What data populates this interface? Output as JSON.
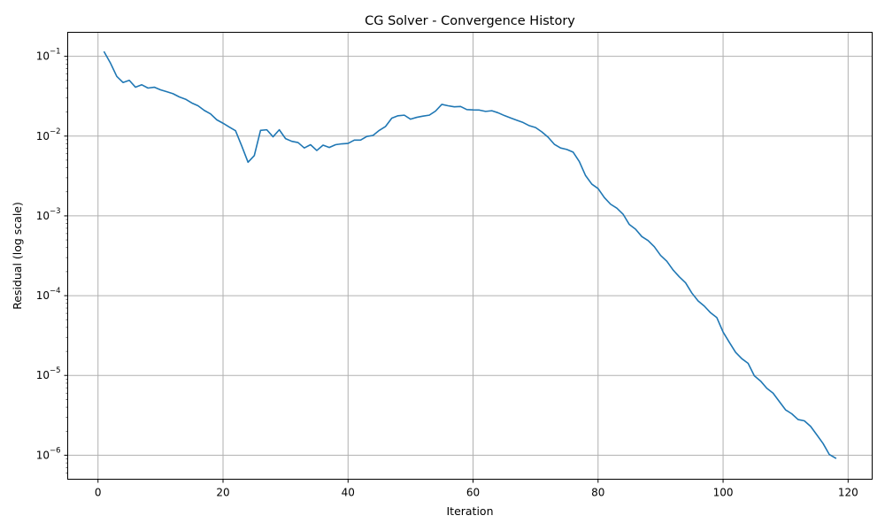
{
  "chart_data": {
    "type": "line",
    "title": "CG Solver - Convergence History",
    "xlabel": "Iteration",
    "ylabel": "Residual (log scale)",
    "xlim": [
      -4.85,
      123.85
    ],
    "ylim": [
      5e-07,
      0.2
    ],
    "yscale": "log",
    "grid": true,
    "x_ticks": [
      0,
      20,
      40,
      60,
      80,
      100,
      120
    ],
    "y_ticks": [
      {
        "base": "10",
        "exp": "−1",
        "value": 0.1
      },
      {
        "base": "10",
        "exp": "−2",
        "value": 0.01
      },
      {
        "base": "10",
        "exp": "−3",
        "value": 0.001
      },
      {
        "base": "10",
        "exp": "−4",
        "value": 0.0001
      },
      {
        "base": "10",
        "exp": "−5",
        "value": 1e-05
      },
      {
        "base": "10",
        "exp": "−6",
        "value": 1e-06
      }
    ],
    "series": [
      {
        "color": "#1f77b4",
        "points": [
          [
            1,
            0.113
          ],
          [
            2,
            0.082
          ],
          [
            3,
            0.056
          ],
          [
            4,
            0.047
          ],
          [
            5,
            0.05
          ],
          [
            6,
            0.041
          ],
          [
            7,
            0.044
          ],
          [
            8,
            0.04
          ],
          [
            9,
            0.041
          ],
          [
            10,
            0.038
          ],
          [
            11,
            0.036
          ],
          [
            12,
            0.034
          ],
          [
            13,
            0.031
          ],
          [
            14,
            0.029
          ],
          [
            15,
            0.026
          ],
          [
            16,
            0.024
          ],
          [
            17,
            0.021
          ],
          [
            18,
            0.019
          ],
          [
            19,
            0.016
          ],
          [
            20,
            0.0145
          ],
          [
            21,
            0.013
          ],
          [
            22,
            0.0117
          ],
          [
            23,
            0.0075
          ],
          [
            24,
            0.0047
          ],
          [
            25,
            0.0057
          ],
          [
            26,
            0.0118
          ],
          [
            27,
            0.012
          ],
          [
            28,
            0.0098
          ],
          [
            29,
            0.012
          ],
          [
            30,
            0.0093
          ],
          [
            31,
            0.0086
          ],
          [
            32,
            0.0083
          ],
          [
            33,
            0.0071
          ],
          [
            34,
            0.0078
          ],
          [
            35,
            0.0066
          ],
          [
            36,
            0.0077
          ],
          [
            37,
            0.0072
          ],
          [
            38,
            0.0078
          ],
          [
            39,
            0.008
          ],
          [
            40,
            0.0081
          ],
          [
            41,
            0.0089
          ],
          [
            42,
            0.0089
          ],
          [
            43,
            0.0099
          ],
          [
            44,
            0.0102
          ],
          [
            45,
            0.0118
          ],
          [
            46,
            0.0132
          ],
          [
            47,
            0.0168
          ],
          [
            48,
            0.018
          ],
          [
            49,
            0.0183
          ],
          [
            50,
            0.0163
          ],
          [
            51,
            0.0172
          ],
          [
            52,
            0.0178
          ],
          [
            53,
            0.0183
          ],
          [
            54,
            0.0206
          ],
          [
            55,
            0.025
          ],
          [
            56,
            0.024
          ],
          [
            57,
            0.0233
          ],
          [
            58,
            0.0235
          ],
          [
            59,
            0.0215
          ],
          [
            60,
            0.0213
          ],
          [
            61,
            0.0212
          ],
          [
            62,
            0.0204
          ],
          [
            63,
            0.0208
          ],
          [
            64,
            0.0196
          ],
          [
            65,
            0.0181
          ],
          [
            66,
            0.0169
          ],
          [
            67,
            0.0158
          ],
          [
            68,
            0.0148
          ],
          [
            69,
            0.0135
          ],
          [
            70,
            0.0128
          ],
          [
            71,
            0.0113
          ],
          [
            72,
            0.0097
          ],
          [
            73,
            0.0079
          ],
          [
            74,
            0.0071
          ],
          [
            75,
            0.0068
          ],
          [
            76,
            0.0063
          ],
          [
            77,
            0.0048
          ],
          [
            78,
            0.0032
          ],
          [
            79,
            0.0025
          ],
          [
            80,
            0.0022
          ],
          [
            81,
            0.0017
          ],
          [
            82,
            0.0014
          ],
          [
            83,
            0.00125
          ],
          [
            84,
            0.00105
          ],
          [
            85,
            0.00078
          ],
          [
            86,
            0.00068
          ],
          [
            87,
            0.00055
          ],
          [
            88,
            0.00049
          ],
          [
            89,
            0.00041
          ],
          [
            90,
            0.00032
          ],
          [
            91,
            0.00027
          ],
          [
            92,
            0.00021
          ],
          [
            93,
            0.000172
          ],
          [
            94,
            0.000145
          ],
          [
            95,
            0.000108
          ],
          [
            96,
            8.6e-05
          ],
          [
            97,
            7.4e-05
          ],
          [
            98,
            6.1e-05
          ],
          [
            99,
            5.3e-05
          ],
          [
            100,
            3.5e-05
          ],
          [
            101,
            2.6e-05
          ],
          [
            102,
            1.95e-05
          ],
          [
            103,
            1.62e-05
          ],
          [
            104,
            1.42e-05
          ],
          [
            105,
            9.9e-06
          ],
          [
            106,
            8.5e-06
          ],
          [
            107,
            6.9e-06
          ],
          [
            108,
            6e-06
          ],
          [
            109,
            4.7e-06
          ],
          [
            110,
            3.7e-06
          ],
          [
            111,
            3.3e-06
          ],
          [
            112,
            2.8e-06
          ],
          [
            113,
            2.7e-06
          ],
          [
            114,
            2.3e-06
          ],
          [
            115,
            1.8e-06
          ],
          [
            116,
            1.4e-06
          ],
          [
            117,
            1.02e-06
          ],
          [
            118,
            9.2e-07
          ]
        ]
      }
    ]
  }
}
